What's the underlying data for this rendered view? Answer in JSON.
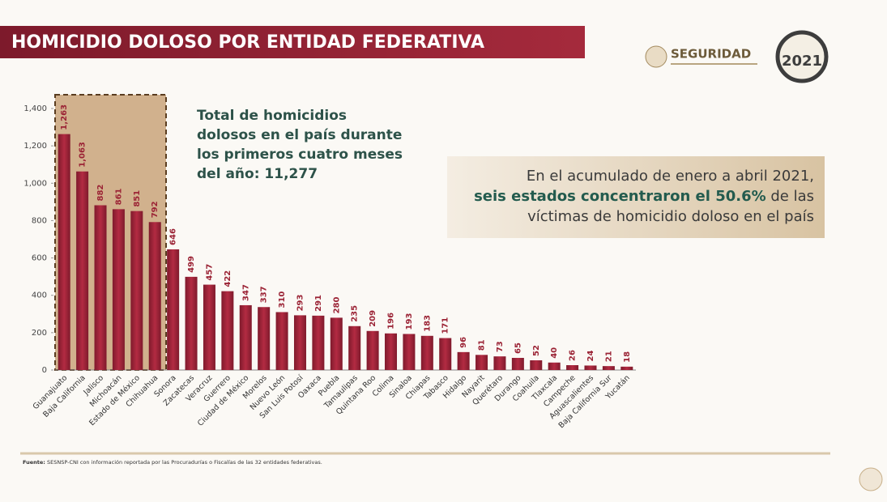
{
  "chart_data": {
    "type": "bar",
    "title": "HOMICIDIO DOLOSO POR ENTIDAD FEDERATIVA",
    "categories": [
      "Guanajuato",
      "Baja California",
      "Jalisco",
      "Michoacán",
      "Estado de México",
      "Chihuahua",
      "Sonora",
      "Zacatecas",
      "Veracruz",
      "Guerrero",
      "Ciudad de México",
      "Morelos",
      "Nuevo León",
      "San Luis Potosí",
      "Oaxaca",
      "Puebla",
      "Tamaulipas",
      "Quintana Roo",
      "Colima",
      "Sinaloa",
      "Chiapas",
      "Tabasco",
      "Hidalgo",
      "Nayarit",
      "Querétaro",
      "Durango",
      "Coahuila",
      "Tlaxcala",
      "Campeche",
      "Aguascalientes",
      "Baja California Sur",
      "Yucatán"
    ],
    "values": [
      1263,
      1063,
      882,
      861,
      851,
      792,
      646,
      499,
      457,
      422,
      347,
      337,
      310,
      293,
      291,
      280,
      235,
      209,
      196,
      193,
      183,
      171,
      96,
      81,
      73,
      65,
      52,
      40,
      26,
      24,
      21,
      18
    ],
    "value_labels": [
      "1,263",
      "1,063",
      "882",
      "861",
      "851",
      "792",
      "646",
      "499",
      "457",
      "422",
      "347",
      "337",
      "310",
      "293",
      "291",
      "280",
      "235",
      "209",
      "196",
      "193",
      "183",
      "171",
      "96",
      "81",
      "73",
      "65",
      "52",
      "40",
      "26",
      "24",
      "21",
      "18"
    ],
    "color": "#a3233a",
    "ylim": [
      0,
      1400
    ],
    "yticks": [
      0,
      200,
      400,
      600,
      800,
      {
        "value": 1000,
        "label": "1,000"
      },
      {
        "value": 1200,
        "label": "1,200"
      },
      {
        "value": 1400,
        "label": "1,400"
      }
    ],
    "total_text": [
      "Total de homicidios",
      "dolosos en el país durante",
      "los primeros cuatro meses",
      "del año: "
    ],
    "total_value": "11,277",
    "callout": {
      "line1": "En el acumulado de enero a abril 2021,",
      "bold": "seis estados concentraron el 50.6%",
      "line2_rest": " de las",
      "line3": "víctimas de homicidio doloso en el país"
    },
    "source_label": "Fuente:",
    "source": " SESNSP-CNI con información reportada por las Procuradurías o Fiscalías de las 32 entidades federativas.",
    "logo_text": "SEGURIDAD",
    "logo_year": "2021"
  }
}
